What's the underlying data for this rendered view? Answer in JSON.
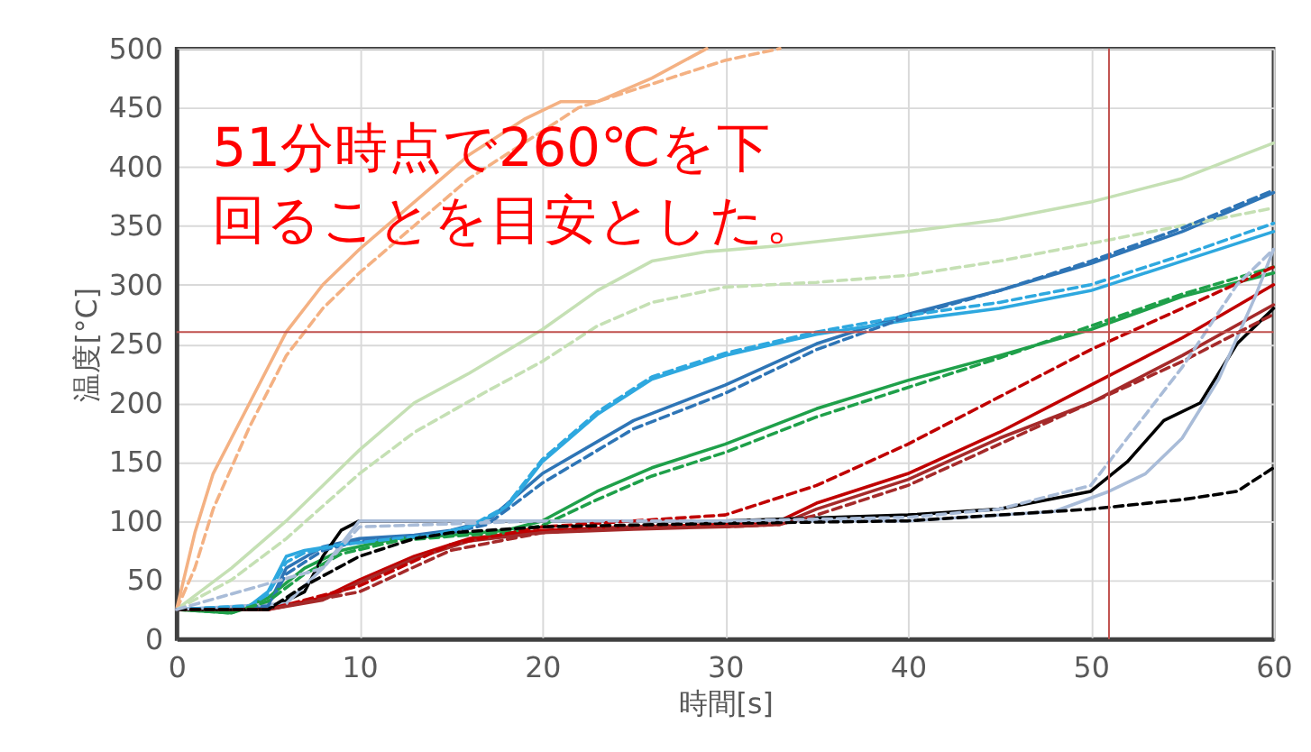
{
  "chart_data": {
    "type": "line",
    "xlabel": "時間[s]",
    "ylabel": "温度[°C]",
    "xlim": [
      0,
      60
    ],
    "xticks": [
      0,
      10,
      20,
      30,
      40,
      50,
      60
    ],
    "ylim": [
      0,
      500
    ],
    "yticks": [
      0,
      50,
      100,
      150,
      200,
      250,
      300,
      350,
      400,
      450,
      500
    ],
    "grid": true,
    "legend": false,
    "marker": "none",
    "annotations": [
      "51分時点で260℃を下回ることを目安とした。"
    ],
    "ref_lines": [
      {
        "axis": "y",
        "value": 260,
        "color": "#c0504d"
      },
      {
        "axis": "x",
        "value": 51,
        "color": "#c0504d"
      }
    ],
    "series": [
      {
        "color": "#f4b183",
        "line_style": "solid",
        "x": [
          0,
          1,
          2,
          4,
          6,
          8,
          10,
          13,
          16,
          19,
          21,
          23,
          26,
          29
        ],
        "values": [
          25,
          90,
          140,
          200,
          260,
          300,
          330,
          370,
          410,
          440,
          455,
          455,
          475,
          500
        ]
      },
      {
        "color": "#f4b183",
        "line_style": "dashed",
        "x": [
          0,
          1,
          2,
          4,
          6,
          8,
          10,
          13,
          16,
          19,
          22,
          26,
          30,
          33
        ],
        "values": [
          25,
          60,
          110,
          180,
          240,
          280,
          310,
          350,
          390,
          420,
          450,
          470,
          490,
          500
        ]
      },
      {
        "color": "#c5e0b4",
        "line_style": "solid",
        "x": [
          0,
          3,
          6,
          8,
          10,
          13,
          16,
          20,
          23,
          26,
          29,
          33,
          40,
          45,
          50,
          55,
          60
        ],
        "values": [
          25,
          60,
          100,
          130,
          160,
          200,
          225,
          262,
          295,
          320,
          328,
          333,
          345,
          355,
          370,
          390,
          420
        ]
      },
      {
        "color": "#c5e0b4",
        "line_style": "dashed",
        "x": [
          0,
          3,
          6,
          10,
          13,
          17,
          20,
          23,
          26,
          30,
          35,
          40,
          45,
          50,
          55,
          60
        ],
        "values": [
          25,
          50,
          85,
          140,
          175,
          210,
          235,
          265,
          285,
          298,
          302,
          308,
          320,
          335,
          350,
          365
        ]
      },
      {
        "color": "#2e75b6",
        "line_style": "solid",
        "x": [
          0,
          5,
          6,
          8,
          10,
          13,
          15,
          17,
          20,
          25,
          30,
          35,
          40,
          45,
          50,
          55,
          60
        ],
        "values": [
          25,
          28,
          60,
          78,
          85,
          88,
          92,
          100,
          140,
          185,
          215,
          250,
          275,
          295,
          318,
          345,
          378
        ]
      },
      {
        "color": "#2e75b6",
        "line_style": "dashed",
        "x": [
          0,
          5,
          6,
          8,
          10,
          13,
          15,
          17,
          20,
          25,
          30,
          35,
          40,
          45,
          50,
          55,
          60
        ],
        "values": [
          25,
          28,
          55,
          75,
          83,
          87,
          90,
          97,
          132,
          178,
          208,
          245,
          273,
          295,
          320,
          348,
          380
        ]
      },
      {
        "color": "#2ea8df",
        "line_style": "solid",
        "x": [
          0,
          4,
          5,
          6,
          7,
          9,
          12,
          14,
          16,
          18,
          20,
          23,
          26,
          30,
          35,
          40,
          45,
          50,
          55,
          60
        ],
        "values": [
          25,
          28,
          40,
          70,
          75,
          80,
          85,
          88,
          95,
          110,
          150,
          190,
          220,
          240,
          258,
          270,
          280,
          295,
          320,
          345
        ]
      },
      {
        "color": "#2ea8df",
        "line_style": "dashed",
        "x": [
          0,
          4,
          5,
          6,
          7,
          9,
          12,
          14,
          16,
          18,
          20,
          23,
          26,
          30,
          35,
          40,
          45,
          50,
          55,
          60
        ],
        "values": [
          25,
          28,
          38,
          65,
          73,
          80,
          85,
          88,
          95,
          112,
          152,
          192,
          222,
          242,
          260,
          274,
          285,
          300,
          325,
          352
        ]
      },
      {
        "color": "#1fa04a",
        "line_style": "solid",
        "x": [
          0,
          3,
          5,
          7,
          9,
          12,
          15,
          18,
          20,
          23,
          26,
          30,
          35,
          40,
          45,
          50,
          55,
          60
        ],
        "values": [
          25,
          22,
          35,
          60,
          75,
          85,
          88,
          92,
          100,
          125,
          145,
          165,
          195,
          219,
          240,
          262,
          290,
          310
        ]
      },
      {
        "color": "#1fa04a",
        "line_style": "dashed",
        "x": [
          0,
          3,
          5,
          7,
          9,
          12,
          15,
          18,
          20,
          23,
          26,
          30,
          35,
          40,
          45,
          50,
          55,
          60
        ],
        "values": [
          25,
          22,
          32,
          55,
          72,
          83,
          87,
          90,
          96,
          118,
          138,
          158,
          188,
          213,
          238,
          265,
          292,
          315
        ]
      },
      {
        "color": "#c00000",
        "line_style": "solid",
        "x": [
          0,
          5,
          8,
          10,
          13,
          16,
          20,
          25,
          30,
          33,
          35,
          40,
          45,
          50,
          55,
          60
        ],
        "values": [
          25,
          25,
          35,
          50,
          70,
          85,
          92,
          95,
          97,
          100,
          115,
          140,
          175,
          215,
          255,
          300
        ]
      },
      {
        "color": "#a52a2a",
        "line_style": "solid",
        "x": [
          0,
          5,
          8,
          10,
          13,
          16,
          20,
          25,
          30,
          33,
          35,
          40,
          45,
          50,
          55,
          60
        ],
        "values": [
          25,
          25,
          33,
          48,
          68,
          83,
          90,
          93,
          95,
          97,
          110,
          135,
          170,
          200,
          240,
          283
        ]
      },
      {
        "color": "#c00000",
        "line_style": "dashed",
        "x": [
          0,
          5,
          10,
          15,
          20,
          25,
          30,
          35,
          40,
          45,
          50,
          55,
          60
        ],
        "values": [
          25,
          25,
          45,
          80,
          95,
          100,
          105,
          130,
          165,
          205,
          245,
          280,
          315
        ]
      },
      {
        "color": "#a52a2a",
        "line_style": "dashed",
        "x": [
          0,
          5,
          10,
          15,
          20,
          25,
          30,
          33,
          35,
          40,
          45,
          50,
          55,
          60
        ],
        "values": [
          25,
          25,
          40,
          75,
          90,
          95,
          95,
          97,
          105,
          130,
          165,
          200,
          235,
          275
        ]
      },
      {
        "color": "#000000",
        "line_style": "solid",
        "x": [
          0,
          5,
          7,
          8,
          9,
          10,
          15,
          20,
          30,
          40,
          45,
          50,
          52,
          54,
          56,
          58,
          60
        ],
        "values": [
          25,
          25,
          40,
          70,
          92,
          100,
          100,
          100,
          100,
          105,
          110,
          125,
          150,
          185,
          200,
          250,
          280
        ]
      },
      {
        "color": "#000000",
        "line_style": "dashed",
        "x": [
          0,
          5,
          7,
          10,
          13,
          15,
          20,
          30,
          40,
          50,
          55,
          58,
          60
        ],
        "values": [
          25,
          25,
          45,
          70,
          85,
          90,
          95,
          98,
          100,
          110,
          118,
          125,
          145
        ]
      },
      {
        "color": "#a9bcd8",
        "line_style": "solid",
        "x": [
          0,
          6,
          8,
          10,
          20,
          30,
          40,
          48,
          51,
          53,
          55,
          57,
          59,
          60
        ],
        "values": [
          25,
          30,
          60,
          100,
          100,
          100,
          100,
          108,
          125,
          140,
          170,
          220,
          290,
          330
        ]
      },
      {
        "color": "#a9bcd8",
        "line_style": "dashed",
        "x": [
          0,
          8,
          10,
          20,
          30,
          40,
          45,
          50,
          52,
          55,
          58,
          60
        ],
        "values": [
          25,
          60,
          95,
          100,
          100,
          103,
          110,
          130,
          170,
          230,
          300,
          330
        ]
      }
    ]
  }
}
